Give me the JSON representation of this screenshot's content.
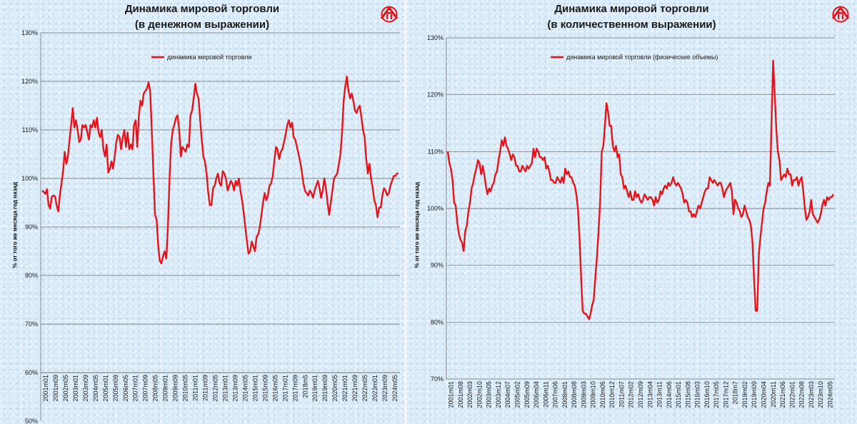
{
  "colors": {
    "series": "#e5141b",
    "grid": "#6b6b6b",
    "text": "#1a1a1a",
    "logo": "#e5141b"
  },
  "logo": {
    "icon": "company-logo-icon"
  },
  "chart_data": [
    {
      "type": "line",
      "title_line1": "Динамика мировой торговли",
      "title_line2": "(в денежном выражении)",
      "ylabel": "% от того же месяца год назад",
      "series_name": "динамика мировой торговли",
      "ylim": [
        50,
        130
      ],
      "yticks": [
        "50%",
        "60%",
        "70%",
        "80%",
        "90%",
        "100%",
        "110%",
        "120%",
        "130%"
      ],
      "xtick_labels": [
        "2001m01",
        "2001m09",
        "2002m05",
        "2003m01",
        "2003m09",
        "2004m05",
        "2005m01",
        "2005m09",
        "2006m05",
        "2007m01",
        "2007m09",
        "2008m05",
        "2009m01",
        "2009m09",
        "2010m05",
        "2011m01",
        "2011m09",
        "2012m05",
        "2013m01",
        "2013m09",
        "2014m05",
        "2015m01",
        "2015m09",
        "2016m05",
        "2017m01",
        "2017m09",
        "2018m5",
        "2019m01",
        "2019m09",
        "2020m05",
        "2021m01",
        "2021m09",
        "2022m05",
        "2023m01",
        "2023m09",
        "2024m05"
      ],
      "grid": true,
      "legend": "top-center",
      "values": [
        97.5,
        97.2,
        96.8,
        97.8,
        94.5,
        93.8,
        96.2,
        96.5,
        96.3,
        94.5,
        93.2,
        96.5,
        99,
        101.5,
        105.5,
        103,
        104.5,
        108,
        111,
        114.5,
        110.5,
        112,
        110,
        107.5,
        108,
        111,
        110.5,
        111,
        109.5,
        108,
        111,
        110.5,
        112,
        110.5,
        112.5,
        109.5,
        108.5,
        110,
        106,
        104.5,
        107,
        101.2,
        102,
        103.5,
        102,
        104.5,
        107.5,
        109,
        108.5,
        106,
        108.5,
        110,
        106.5,
        109.5,
        106,
        107,
        106,
        111,
        112,
        106.5,
        113,
        116,
        115,
        117.5,
        118,
        118.5,
        119.8,
        118,
        110,
        101,
        92.5,
        91.5,
        86,
        83,
        82.5,
        84,
        85,
        83.5,
        90,
        100,
        107,
        110,
        111,
        112.5,
        113,
        110,
        104.5,
        106.5,
        106,
        105.5,
        107,
        106.5,
        113,
        114,
        116.5,
        119.5,
        117.5,
        116.5,
        112,
        108,
        104.5,
        103.5,
        101,
        97,
        94.5,
        94.5,
        98,
        98.5,
        100,
        101,
        99,
        98.5,
        101.5,
        101,
        100,
        97.5,
        98.5,
        99.5,
        99,
        97.5,
        99.5,
        98.5,
        100,
        97.5,
        95.5,
        93,
        90,
        87,
        84.5,
        85,
        87,
        86,
        85,
        88,
        88.5,
        90,
        92.5,
        95,
        97,
        95.5,
        96.5,
        98.5,
        99,
        100.5,
        103.5,
        106.5,
        106,
        104,
        105.5,
        106,
        107.5,
        109,
        111,
        112,
        110.5,
        111.5,
        108.5,
        108,
        106.5,
        105,
        103.5,
        101.5,
        99,
        97.5,
        97,
        96.5,
        97.5,
        97,
        96,
        97.5,
        98.5,
        99.5,
        98,
        96,
        97.5,
        100,
        98,
        95,
        92.5,
        95,
        97.5,
        100,
        100.5,
        101,
        103,
        105,
        109.5,
        116,
        119,
        121,
        118,
        116.5,
        117.5,
        116,
        114,
        113.5,
        114.5,
        115,
        112.5,
        110,
        108.5,
        104,
        101,
        103,
        100,
        98,
        95.5,
        94.5,
        92,
        94,
        94,
        96.5,
        98,
        97.5,
        96.5,
        97,
        98.5,
        99.5,
        100.5,
        100.5,
        101,
        101
      ]
    },
    {
      "type": "line",
      "title_line1": "Динамика мировой торговли",
      "title_line2": "(в количественном выражении)",
      "ylabel": "% от того же месяца год назад",
      "series_name": "динамика мировой торговли (физические объемы)",
      "ylim": [
        70,
        130
      ],
      "yticks": [
        "70%",
        "80%",
        "90%",
        "100%",
        "110%",
        "120%",
        "130%"
      ],
      "xtick_labels": [
        "2001m01",
        "2001m08",
        "2002m03",
        "2002m10",
        "2003m05",
        "2003m12",
        "2004m07",
        "2005m02",
        "2005m09",
        "2006m04",
        "2006m11",
        "2007m06",
        "2008m01",
        "2008m08",
        "2009m03",
        "2009m10",
        "2010m05",
        "2010m12",
        "2011m07",
        "2012m02",
        "2012m09",
        "2013m04",
        "2013m11",
        "2014m06",
        "2015m01",
        "2015m08",
        "2016m03",
        "2016m10",
        "2017m05",
        "2017m12",
        "2018m7",
        "2019m02",
        "2019m09",
        "2020m04",
        "2020m11",
        "2021m06",
        "2022m01",
        "2022m08",
        "2023m03",
        "2023m10",
        "2024m05"
      ],
      "grid": true,
      "legend": "top-center",
      "values": [
        110,
        108,
        107,
        105,
        101,
        100.5,
        97.5,
        95.5,
        94.5,
        94,
        92.5,
        96,
        97,
        99.5,
        101,
        103.5,
        104.5,
        106,
        107,
        108.5,
        108,
        106,
        107.5,
        106,
        104,
        102.5,
        103.5,
        103,
        104,
        104.5,
        106,
        106.5,
        108.5,
        110,
        112,
        111,
        112.5,
        111,
        110.5,
        109.5,
        108.5,
        109.5,
        109,
        107.5,
        107.5,
        106.5,
        106.5,
        107.5,
        107,
        106.5,
        107.5,
        107,
        107.5,
        108,
        110.5,
        109,
        110.5,
        110,
        109,
        109,
        108.5,
        109,
        107,
        107.5,
        106.5,
        105,
        105,
        104.5,
        104.5,
        105.5,
        105,
        104.5,
        105.5,
        104.5,
        107,
        106,
        106.5,
        105.5,
        105.5,
        104.5,
        104,
        102.5,
        100,
        95,
        88,
        82,
        81.5,
        81.5,
        81,
        80.5,
        81.5,
        83,
        84,
        88,
        91.5,
        96,
        101,
        110,
        111,
        114.5,
        118.5,
        117,
        114.5,
        114.5,
        111,
        110,
        111,
        109,
        109.5,
        106,
        105.5,
        103.5,
        104,
        103,
        102,
        103,
        101.5,
        101.5,
        103,
        102,
        102.5,
        101.5,
        101,
        101.5,
        102.5,
        102,
        101.5,
        102,
        102,
        101.5,
        100.5,
        102,
        101,
        101.5,
        103,
        102.5,
        103.5,
        104,
        103.5,
        104.5,
        104,
        104.5,
        105.5,
        104.5,
        104,
        104.5,
        104,
        103.5,
        102.5,
        101,
        101.5,
        101,
        99.5,
        99.5,
        98.5,
        99,
        98.5,
        99.5,
        100.5,
        100,
        101,
        102,
        103,
        103.5,
        103.5,
        105.5,
        105,
        104.5,
        105,
        104.5,
        104,
        104.5,
        104.5,
        103.5,
        102,
        103,
        103.5,
        104,
        104.5,
        103,
        99,
        101.5,
        101,
        100,
        99.5,
        98.5,
        99,
        100.5,
        99.5,
        98.5,
        98,
        97,
        94,
        87.5,
        82,
        82,
        92,
        95,
        97.5,
        100,
        101,
        103,
        104.5,
        104,
        115,
        126,
        120,
        114,
        110,
        108.5,
        105,
        105.5,
        106,
        105.5,
        107,
        106,
        106,
        104,
        105,
        105,
        105.5,
        104,
        105,
        105.5,
        103,
        100,
        98,
        98.5,
        99.5,
        101.5,
        99,
        98.5,
        98,
        97.5,
        98,
        99,
        100.5,
        101.5,
        100.5,
        102,
        101.5,
        102,
        102,
        102.5
      ]
    }
  ]
}
